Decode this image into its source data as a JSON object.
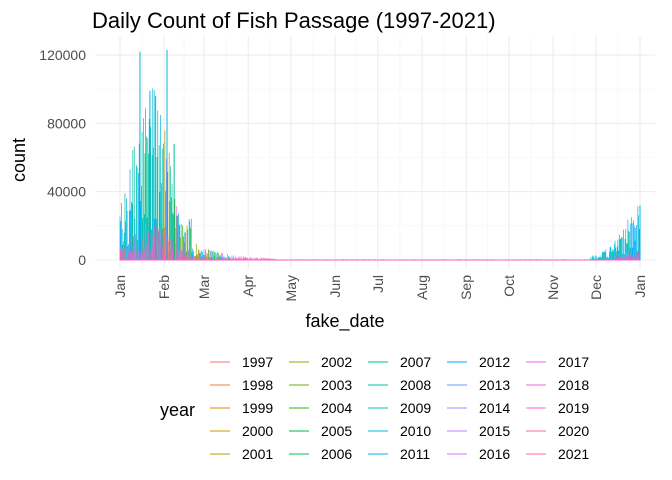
{
  "chart_data": {
    "type": "line",
    "title": "Daily Count of Fish Passage (1997-2021)",
    "xlabel": "fake_date",
    "ylabel": "count",
    "ylim": [
      0,
      125000
    ],
    "y_ticks": [
      0,
      40000,
      80000,
      120000
    ],
    "y_tick_labels": [
      "0",
      "40000",
      "80000",
      "120000"
    ],
    "x_ticks": [
      "Jan",
      "Feb",
      "Mar",
      "Apr",
      "May",
      "Jun",
      "Jul",
      "Aug",
      "Sep",
      "Oct",
      "Nov",
      "Dec",
      "Jan"
    ],
    "grid": true,
    "legend_title": "year",
    "legend_position": "bottom",
    "series": [
      {
        "name": "1997",
        "color": "#F8766D"
      },
      {
        "name": "1998",
        "color": "#EC8239"
      },
      {
        "name": "1999",
        "color": "#DB8E00"
      },
      {
        "name": "2000",
        "color": "#C79800"
      },
      {
        "name": "2001",
        "color": "#AFA100"
      },
      {
        "name": "2002",
        "color": "#93AA00"
      },
      {
        "name": "2003",
        "color": "#6FB000"
      },
      {
        "name": "2004",
        "color": "#39B600"
      },
      {
        "name": "2005",
        "color": "#00BA38"
      },
      {
        "name": "2006",
        "color": "#00BD5F"
      },
      {
        "name": "2007",
        "color": "#00C08B"
      },
      {
        "name": "2008",
        "color": "#00C1A7"
      },
      {
        "name": "2009",
        "color": "#00BFC4"
      },
      {
        "name": "2010",
        "color": "#00BADE"
      },
      {
        "name": "2011",
        "color": "#00B4EF"
      },
      {
        "name": "2012",
        "color": "#00A9FF"
      },
      {
        "name": "2013",
        "color": "#619CFF"
      },
      {
        "name": "2014",
        "color": "#9C8DFF"
      },
      {
        "name": "2015",
        "color": "#C77CFF"
      },
      {
        "name": "2016",
        "color": "#DF70F8"
      },
      {
        "name": "2017",
        "color": "#F066EA"
      },
      {
        "name": "2018",
        "color": "#FB61D7"
      },
      {
        "name": "2019",
        "color": "#FF61C3"
      },
      {
        "name": "2020",
        "color": "#FF67A4"
      },
      {
        "name": "2021",
        "color": "#FF6C90"
      }
    ],
    "approx_daily_peaks": [
      {
        "day": 14,
        "count": 122000,
        "series": "2010"
      },
      {
        "day": 21,
        "count": 99000,
        "series": "2011"
      },
      {
        "day": 25,
        "count": 96000,
        "series": "2009"
      },
      {
        "day": 33,
        "count": 123000,
        "series": "2010"
      },
      {
        "day": 38,
        "count": 68000,
        "series": "2007"
      },
      {
        "day": 29,
        "count": 45000,
        "series": "2009"
      },
      {
        "day": 365,
        "count": 32000,
        "series": "2011"
      }
    ]
  }
}
